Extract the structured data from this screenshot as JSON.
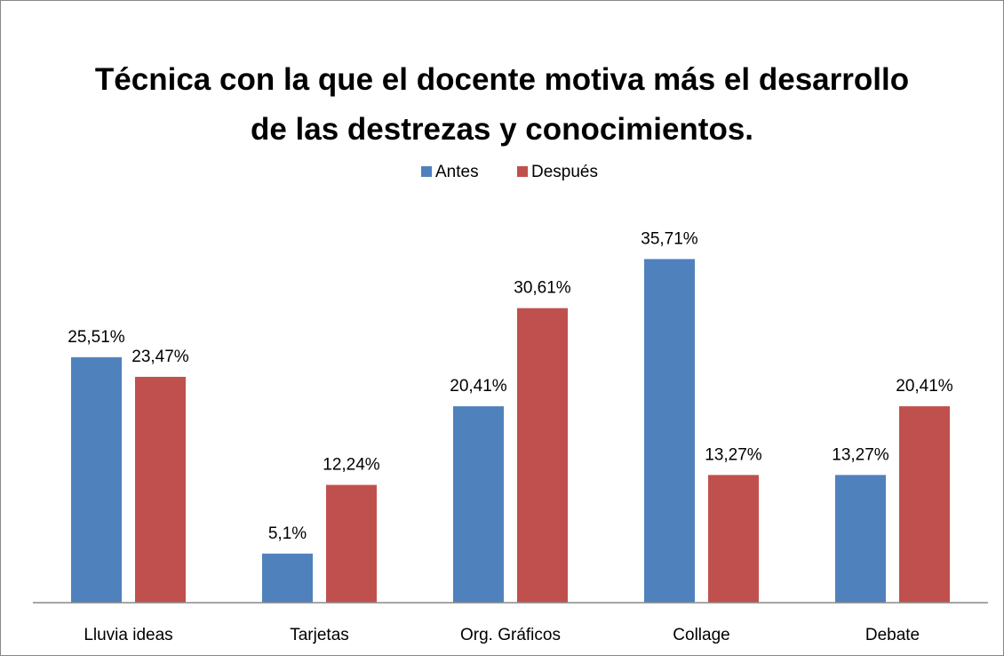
{
  "chart_data": {
    "type": "bar",
    "title": "Técnica con la que el docente motiva más el desarrollo de las destrezas y conocimientos.",
    "categories": [
      "Lluvia ideas",
      "Tarjetas",
      "Org. Gráficos",
      "Collage",
      "Debate"
    ],
    "series": [
      {
        "name": "Antes",
        "color": "#4f81bd",
        "values": [
          25.51,
          5.1,
          20.41,
          35.71,
          13.27
        ],
        "value_labels": [
          "25,51%",
          "5,1%",
          "20,41%",
          "35,71%",
          "13,27%"
        ]
      },
      {
        "name": "Después",
        "color": "#c0504d",
        "values": [
          23.47,
          12.24,
          30.61,
          13.27,
          20.41
        ],
        "value_labels": [
          "23,47%",
          "12,24%",
          "30,61%",
          "13,27%",
          "20,41%"
        ]
      }
    ],
    "ylim": [
      0,
      40
    ],
    "legend": "top"
  }
}
